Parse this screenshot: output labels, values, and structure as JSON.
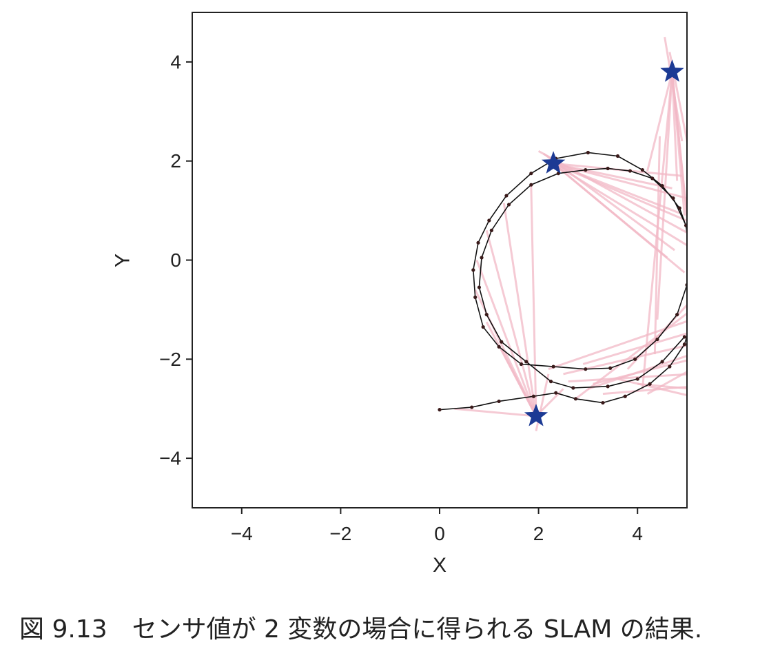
{
  "caption": "図 9.13　センサ値が 2 変数の場合に得られる SLAM の結果.",
  "chart_data": {
    "type": "scatter",
    "xlabel": "X",
    "ylabel": "Y",
    "xlim": [
      -5,
      5
    ],
    "ylim": [
      -5,
      5
    ],
    "xticks": [
      -4,
      -2,
      0,
      2,
      4
    ],
    "yticks": [
      -4,
      -2,
      0,
      2,
      4
    ],
    "xtick_labels": [
      "−4",
      "−2",
      "0",
      "2",
      "4"
    ],
    "ytick_labels": [
      "−4",
      "−2",
      "0",
      "2",
      "4"
    ],
    "grid": false,
    "colors": {
      "trajectory": "#111111",
      "observation": "#f2b8c6",
      "landmark": "#1c3a94"
    },
    "landmarks": [
      {
        "x": 2.3,
        "y": 1.95
      },
      {
        "x": 4.7,
        "y": 3.8
      },
      {
        "x": 1.95,
        "y": -3.15
      }
    ],
    "trajectory": [
      [
        0.0,
        -3.02
      ],
      [
        0.65,
        -2.97
      ],
      [
        1.2,
        -2.85
      ],
      [
        1.9,
        -2.75
      ],
      [
        2.35,
        -2.68
      ],
      [
        2.75,
        -2.8
      ],
      [
        3.3,
        -2.88
      ],
      [
        3.75,
        -2.75
      ],
      [
        4.25,
        -2.5
      ],
      [
        4.65,
        -2.15
      ],
      [
        4.95,
        -1.7
      ],
      [
        5.1,
        -1.2
      ],
      [
        5.15,
        -0.6
      ],
      [
        5.12,
        0.0
      ],
      [
        5.05,
        0.5
      ],
      [
        4.85,
        1.05
      ],
      [
        4.5,
        1.5
      ],
      [
        4.1,
        1.82
      ],
      [
        3.6,
        2.1
      ],
      [
        3.0,
        2.17
      ],
      [
        2.35,
        2.05
      ],
      [
        1.85,
        1.75
      ],
      [
        1.35,
        1.3
      ],
      [
        1.0,
        0.8
      ],
      [
        0.78,
        0.35
      ],
      [
        0.68,
        -0.2
      ],
      [
        0.72,
        -0.75
      ],
      [
        0.88,
        -1.35
      ],
      [
        1.2,
        -1.75
      ],
      [
        1.65,
        -2.1
      ],
      [
        2.3,
        -2.15
      ],
      [
        2.95,
        -2.2
      ],
      [
        3.45,
        -2.18
      ],
      [
        3.95,
        -2.0
      ],
      [
        4.4,
        -1.6
      ],
      [
        4.8,
        -1.1
      ],
      [
        5.0,
        -0.5
      ],
      [
        5.05,
        0.1
      ],
      [
        4.98,
        0.7
      ],
      [
        4.72,
        1.25
      ],
      [
        4.3,
        1.65
      ],
      [
        3.85,
        1.8
      ],
      [
        3.4,
        1.85
      ],
      [
        2.95,
        1.82
      ],
      [
        2.4,
        1.75
      ],
      [
        1.85,
        1.52
      ],
      [
        1.4,
        1.12
      ],
      [
        1.05,
        0.6
      ],
      [
        0.85,
        0.05
      ],
      [
        0.8,
        -0.55
      ],
      [
        0.95,
        -1.1
      ],
      [
        1.25,
        -1.65
      ],
      [
        1.75,
        -2.05
      ],
      [
        2.25,
        -2.45
      ],
      [
        2.7,
        -2.58
      ],
      [
        3.4,
        -2.55
      ],
      [
        4.0,
        -2.4
      ],
      [
        4.5,
        -2.05
      ],
      [
        4.95,
        -1.55
      ]
    ],
    "observations": [
      [
        2.3,
        1.95,
        5.0,
        1.25
      ],
      [
        2.3,
        1.95,
        5.1,
        0.75
      ],
      [
        2.3,
        1.95,
        5.0,
        0.3
      ],
      [
        2.3,
        1.95,
        4.6,
        0.05
      ],
      [
        2.3,
        1.95,
        4.95,
        -0.25
      ],
      [
        2.3,
        1.95,
        4.7,
        1.45
      ],
      [
        2.3,
        1.95,
        4.85,
        0.95
      ],
      [
        2.3,
        1.95,
        4.9,
        1.7
      ],
      [
        2.0,
        2.2,
        5.1,
        0.5
      ],
      [
        2.1,
        2.15,
        4.75,
        0.2
      ],
      [
        4.7,
        3.8,
        5.05,
        0.4
      ],
      [
        4.7,
        3.8,
        5.1,
        -0.1
      ],
      [
        4.7,
        3.8,
        4.95,
        0.9
      ],
      [
        4.7,
        3.8,
        4.8,
        1.6
      ],
      [
        4.7,
        3.8,
        4.4,
        -1.2
      ],
      [
        4.7,
        3.8,
        4.1,
        -2.6
      ],
      [
        4.7,
        3.8,
        4.2,
        1.8
      ],
      [
        4.55,
        4.5,
        4.9,
        2.4
      ],
      [
        4.65,
        4.2,
        5.1,
        1.9
      ],
      [
        4.45,
        2.5,
        4.35,
        -1.9
      ],
      [
        1.95,
        -3.15,
        1.85,
        1.5
      ],
      [
        1.95,
        -3.15,
        1.3,
        1.15
      ],
      [
        1.95,
        -3.15,
        0.95,
        0.6
      ],
      [
        1.95,
        -3.15,
        0.75,
        0.0
      ],
      [
        1.95,
        -3.15,
        0.72,
        -0.6
      ],
      [
        1.95,
        -3.15,
        0.95,
        -1.25
      ],
      [
        1.95,
        -3.15,
        1.25,
        -1.8
      ],
      [
        1.95,
        -3.15,
        0.3,
        -3.0
      ],
      [
        1.95,
        -3.15,
        2.5,
        -2.6
      ],
      [
        1.95,
        -3.45,
        2.2,
        -2.3
      ],
      [
        2.2,
        -2.2,
        5.1,
        -1.2
      ],
      [
        2.5,
        -2.3,
        5.1,
        -1.7
      ],
      [
        2.9,
        -2.1,
        5.1,
        -1.45
      ],
      [
        3.1,
        -2.5,
        5.1,
        -2.0
      ],
      [
        2.6,
        -2.45,
        5.1,
        -2.3
      ],
      [
        3.3,
        -2.7,
        5.1,
        -2.55
      ],
      [
        3.6,
        -2.4,
        5.1,
        -2.75
      ],
      [
        4.2,
        -2.7,
        5.1,
        -2.2
      ],
      [
        2.75,
        -2.8,
        5.1,
        -1.0
      ],
      [
        3.8,
        -2.2,
        5.1,
        -0.8
      ],
      [
        4.0,
        -2.5,
        5.1,
        -2.6
      ],
      [
        3.0,
        -2.6,
        5.1,
        -1.9
      ]
    ]
  }
}
